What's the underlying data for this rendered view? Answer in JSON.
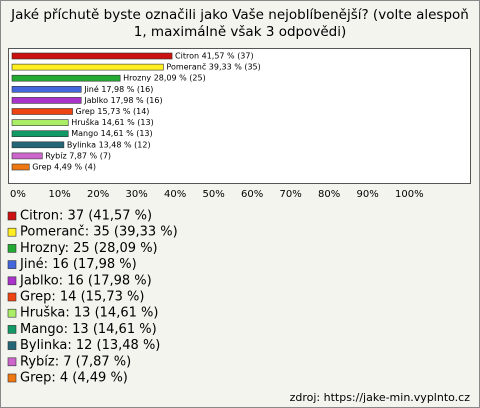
{
  "chart_data": {
    "type": "bar",
    "orientation": "horizontal",
    "title": [
      "Jaké příchutě byste označili jako Vaše nejoblíbenější? (volte alespoň",
      "1, maximálně však 3 odpovědi)"
    ],
    "categories": [
      "Citron",
      "Pomeranč",
      "Hrozny",
      "Jiné",
      "Jablko",
      "Grep",
      "Hruška",
      "Mango",
      "Bylinka",
      "Rybíz",
      "Grep"
    ],
    "values": [
      41.57,
      39.33,
      28.09,
      17.98,
      17.98,
      15.73,
      14.61,
      14.61,
      13.48,
      7.87,
      4.49
    ],
    "value_labels": [
      "Citron 41,57 % (37)",
      "Pomeranč 39,33 % (35)",
      "Hrozny 28,09 % (25)",
      "Jiné 17,98 % (16)",
      "Jablko 17,98 % (16)",
      "Grep 15,73 % (14)",
      "Hruška 14,61 % (13)",
      "Mango 14,61 % (13)",
      "Bylinka 13,48 % (12)",
      "Rybíz 7,87 % (7)",
      "Grep 4,49 % (4)"
    ],
    "legend": [
      "Citron: 37 (41,57 %)",
      "Pomeranč: 35 (39,33 %)",
      "Hrozny: 25 (28,09 %)",
      "Jiné: 16 (17,98 %)",
      "Jablko: 16 (17,98 %)",
      " Grep: 14 (15,73 %)",
      "Hruška: 13 (14,61 %)",
      "Mango: 13 (14,61 %)",
      "Bylinka: 12 (13,48 %)",
      "Rybíz: 7 (7,87 %)",
      "Grep: 4 (4,49 %)"
    ],
    "colors": [
      "#cc1111",
      "#ffee22",
      "#22aa33",
      "#4466dd",
      "#aa33cc",
      "#ee4411",
      "#aaee66",
      "#119966",
      "#226677",
      "#cc66cc",
      "#ee7711"
    ],
    "xlim": [
      0,
      100
    ],
    "xticks": [
      {
        "value": 0,
        "label": "0%"
      },
      {
        "value": 10,
        "label": "10%"
      },
      {
        "value": 20,
        "label": "20%"
      },
      {
        "value": 30,
        "label": "30%"
      },
      {
        "value": 40,
        "label": "40%"
      },
      {
        "value": 50,
        "label": "50%"
      },
      {
        "value": 60,
        "label": "60%"
      },
      {
        "value": 70,
        "label": "70%"
      },
      {
        "value": 80,
        "label": "80%"
      },
      {
        "value": 90,
        "label": "90%"
      },
      {
        "value": 100,
        "label": "100%"
      }
    ],
    "source": "zdroj: https://jake-min.vyplnto.cz"
  }
}
